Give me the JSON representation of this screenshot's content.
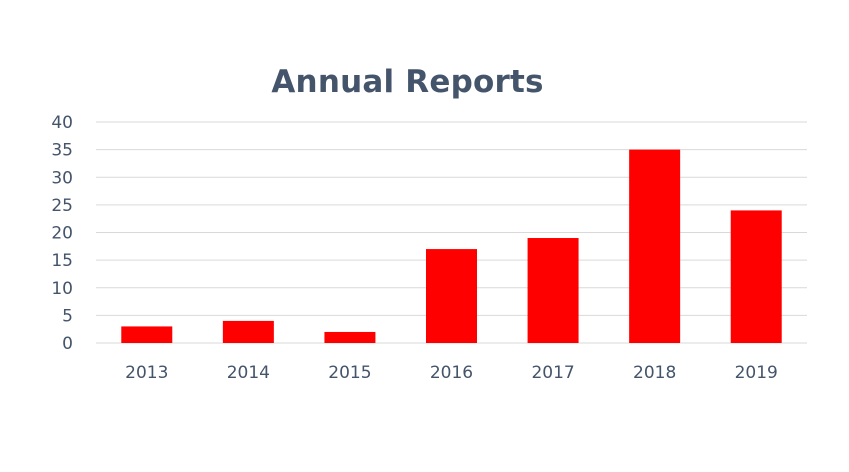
{
  "chart_data": {
    "type": "bar",
    "title": "Annual Reports",
    "categories": [
      "2013",
      "2014",
      "2015",
      "2016",
      "2017",
      "2018",
      "2019"
    ],
    "values": [
      3,
      4,
      2,
      17,
      19,
      35,
      24
    ],
    "ylim": [
      0,
      40
    ],
    "yticks": [
      0,
      5,
      10,
      15,
      20,
      25,
      30,
      35,
      40
    ],
    "grid": true,
    "bar_color": "#ff0000",
    "grid_color": "#d9d9d9",
    "text_color": "#44546a"
  }
}
